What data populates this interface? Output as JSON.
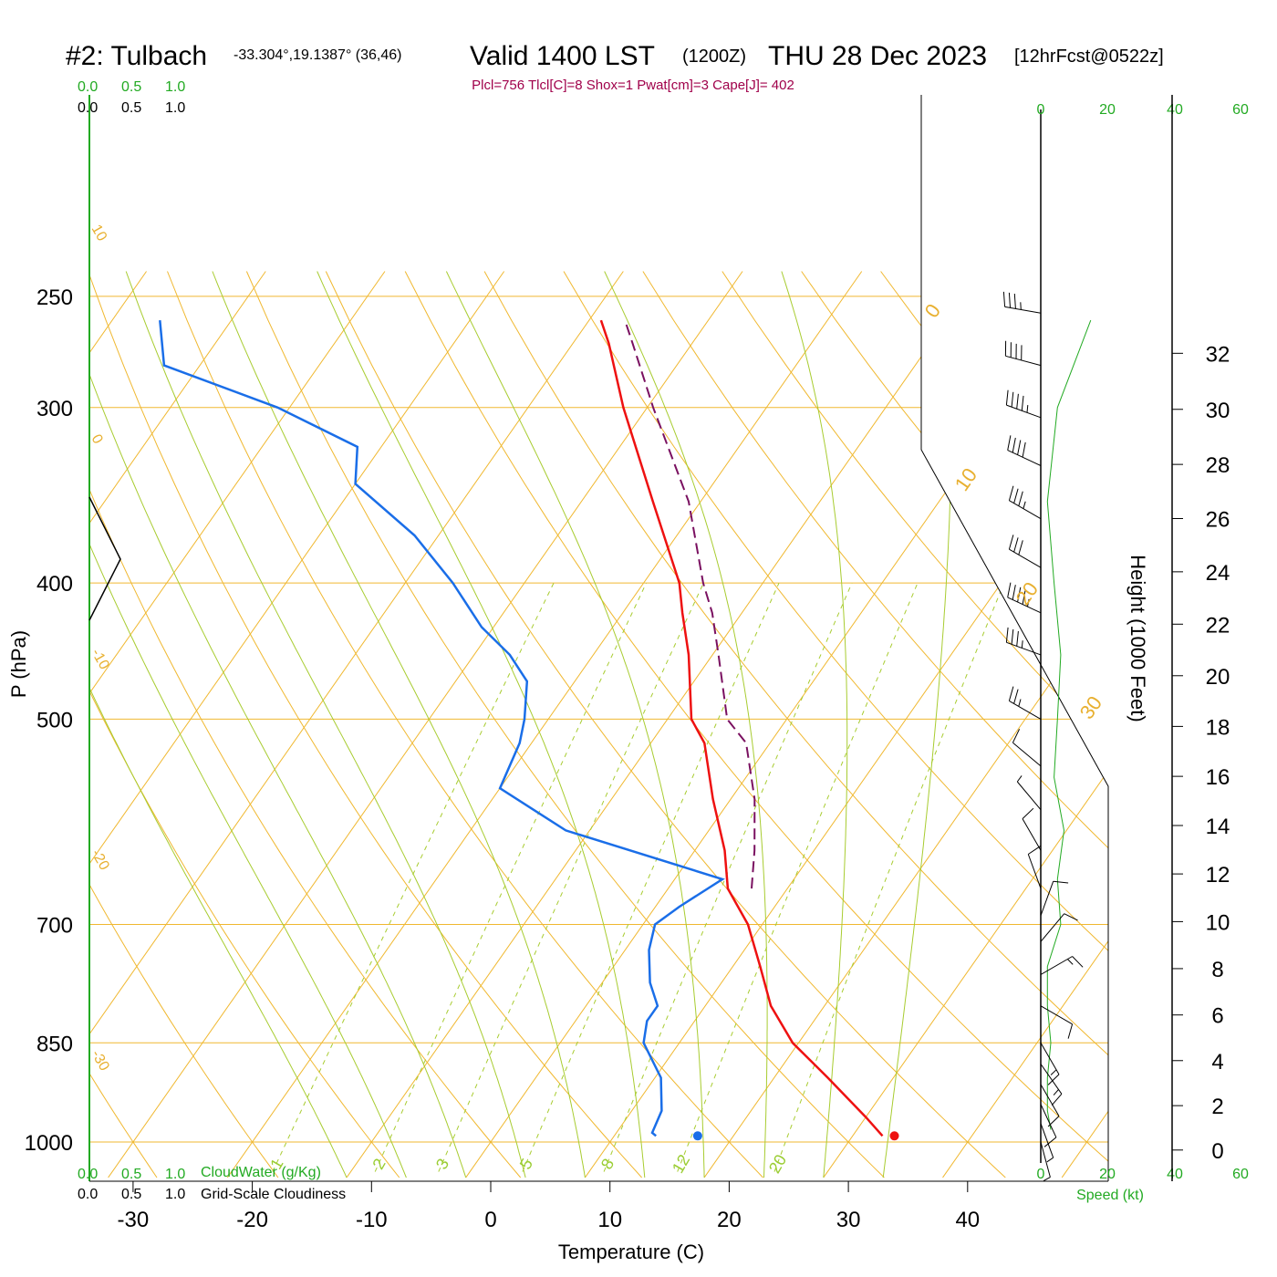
{
  "header": {
    "station": "#2: Tulbach",
    "coords": "-33.304°,19.1387° (36,46)",
    "valid": "Valid 1400 LST",
    "zulu": "(1200Z)",
    "date": "THU 28 Dec 2023",
    "forecast": "[12hrFcst@0522z]",
    "params": "Plcl=756 Tlcl[C]=8 Shox=1 Pwat[cm]=3 Cape[J]= 402"
  },
  "legend": {
    "cloud_scale_top_green": [
      "0.0",
      "0.5",
      "1.0"
    ],
    "cloud_scale_top_black": [
      "0.0",
      "0.5",
      "1.0"
    ],
    "cloud_scale_bottom_green": [
      "0.0",
      "0.5",
      "1.0"
    ],
    "cloud_scale_bottom_black": [
      "0.0",
      "0.5",
      "1.0"
    ],
    "cloudwater_label": "CloudWater (g/Kg)",
    "cloudiness_label": "Grid-Scale Cloudiness",
    "speed_ticks_top": [
      "0",
      "20",
      "40",
      "60"
    ],
    "speed_ticks_bottom": [
      "0",
      "20",
      "40",
      "60"
    ],
    "speed_label": "Speed (kt)"
  },
  "colors": {
    "temperature": "#ee1111",
    "dewpoint": "#1a6ee8",
    "parcel": "#7a1060",
    "isotherm": "#f0b830",
    "dry_adiabat": "#f0b830",
    "moist_adiabat": "#a8cc30",
    "mixing_ratio": "#a8cc30",
    "speed_line": "#22aa22"
  },
  "chart_data": {
    "type": "line",
    "title": "#2: Tulbach",
    "xlabel": "Temperature (C)",
    "ylabel": "P (hPa)",
    "y2label": "Height (1000 Feet)",
    "x_ticks": [
      "-30",
      "-20",
      "-10",
      "0",
      "10",
      "20",
      "30",
      "40"
    ],
    "y_ticks": [
      "250",
      "300",
      "400",
      "500",
      "700",
      "850",
      "1000"
    ],
    "height_ticks": [
      "0",
      "2",
      "4",
      "6",
      "8",
      "10",
      "12",
      "14",
      "16",
      "18",
      "20",
      "22",
      "24",
      "26",
      "28",
      "30",
      "32"
    ],
    "isotherm_labels": [
      {
        "temp": 10,
        "text": "10"
      },
      {
        "temp": 0,
        "text": "0"
      },
      {
        "temp": -10,
        "text": "-10"
      },
      {
        "temp": -20,
        "text": "-20"
      },
      {
        "temp": -30,
        "text": "-30"
      }
    ],
    "isotherm_labels_right": [
      {
        "temp": 0,
        "text": "0"
      },
      {
        "temp": 10,
        "text": "10"
      },
      {
        "temp": 20,
        "text": "20"
      },
      {
        "temp": 30,
        "text": "30"
      }
    ],
    "mixing_ratio_labels": [
      "1",
      "2",
      "3",
      "5",
      "8",
      "12",
      "20"
    ],
    "series": [
      {
        "name": "Temperature",
        "pressure": [
          990,
          960,
          900,
          850,
          800,
          750,
          700,
          660,
          620,
          570,
          520,
          500,
          450,
          420,
          400,
          350,
          300,
          270,
          260
        ],
        "temp": [
          32.5,
          30,
          24.5,
          19.5,
          15.5,
          12.3,
          8.8,
          5,
          2.5,
          -1.5,
          -5.5,
          -8,
          -12,
          -15,
          -17,
          -24,
          -32,
          -37,
          -39
        ]
      },
      {
        "name": "Dewpoint",
        "pressure": [
          990,
          985,
          950,
          900,
          850,
          820,
          800,
          770,
          730,
          700,
          680,
          650,
          600,
          560,
          520,
          500,
          470,
          450,
          430,
          400,
          370,
          340,
          320,
          300,
          280,
          260
        ],
        "temp": [
          13.5,
          13,
          12.5,
          10.5,
          7,
          6,
          6,
          4,
          2,
          1,
          2,
          4,
          -12,
          -20,
          -21,
          -22,
          -24,
          -27,
          -31,
          -36,
          -42,
          -50,
          -52,
          -61,
          -73,
          -76
        ]
      },
      {
        "name": "Parcel",
        "pressure": [
          660,
          620,
          570,
          520,
          500,
          450,
          420,
          400,
          350,
          300,
          270,
          260
        ],
        "temp": [
          7,
          5,
          2,
          -2,
          -5,
          -9.5,
          -12.5,
          -15,
          -21,
          -29.5,
          -35,
          -37
        ]
      }
    ],
    "surface_points": [
      {
        "name": "surface-temp",
        "pressure": 990,
        "temp": 33.5
      },
      {
        "name": "surface-dew",
        "pressure": 990,
        "temp": 17
      }
    ],
    "wind_barbs": [
      {
        "pressure": 257,
        "dir": 280,
        "speed": 35
      },
      {
        "pressure": 280,
        "dir": 285,
        "speed": 40
      },
      {
        "pressure": 305,
        "dir": 290,
        "speed": 45
      },
      {
        "pressure": 330,
        "dir": 295,
        "speed": 40
      },
      {
        "pressure": 360,
        "dir": 300,
        "speed": 35
      },
      {
        "pressure": 390,
        "dir": 300,
        "speed": 30
      },
      {
        "pressure": 420,
        "dir": 295,
        "speed": 45
      },
      {
        "pressure": 450,
        "dir": 290,
        "speed": 35
      },
      {
        "pressure": 500,
        "dir": 300,
        "speed": 25
      },
      {
        "pressure": 540,
        "dir": 310,
        "speed": 12
      },
      {
        "pressure": 580,
        "dir": 320,
        "speed": 8
      },
      {
        "pressure": 620,
        "dir": 330,
        "speed": 10
      },
      {
        "pressure": 660,
        "dir": 340,
        "speed": 10
      },
      {
        "pressure": 690,
        "dir": 20,
        "speed": 12
      },
      {
        "pressure": 720,
        "dir": 40,
        "speed": 14
      },
      {
        "pressure": 760,
        "dir": 60,
        "speed": 15
      },
      {
        "pressure": 800,
        "dir": 120,
        "speed": 12
      },
      {
        "pressure": 850,
        "dir": 150,
        "speed": 15
      },
      {
        "pressure": 880,
        "dir": 145,
        "speed": 15
      },
      {
        "pressure": 910,
        "dir": 150,
        "speed": 12
      },
      {
        "pressure": 940,
        "dir": 155,
        "speed": 10
      },
      {
        "pressure": 970,
        "dir": 160,
        "speed": 8
      },
      {
        "pressure": 1000,
        "dir": 165,
        "speed": 6
      }
    ],
    "wind_speed_profile": {
      "pressure": [
        260,
        300,
        350,
        400,
        450,
        500,
        550,
        600,
        650,
        700,
        750,
        800,
        850,
        900,
        950,
        980
      ],
      "speed": [
        15,
        5,
        2,
        4,
        6,
        5,
        4,
        7,
        5,
        6,
        2,
        2,
        3,
        2,
        2,
        3
      ]
    }
  }
}
